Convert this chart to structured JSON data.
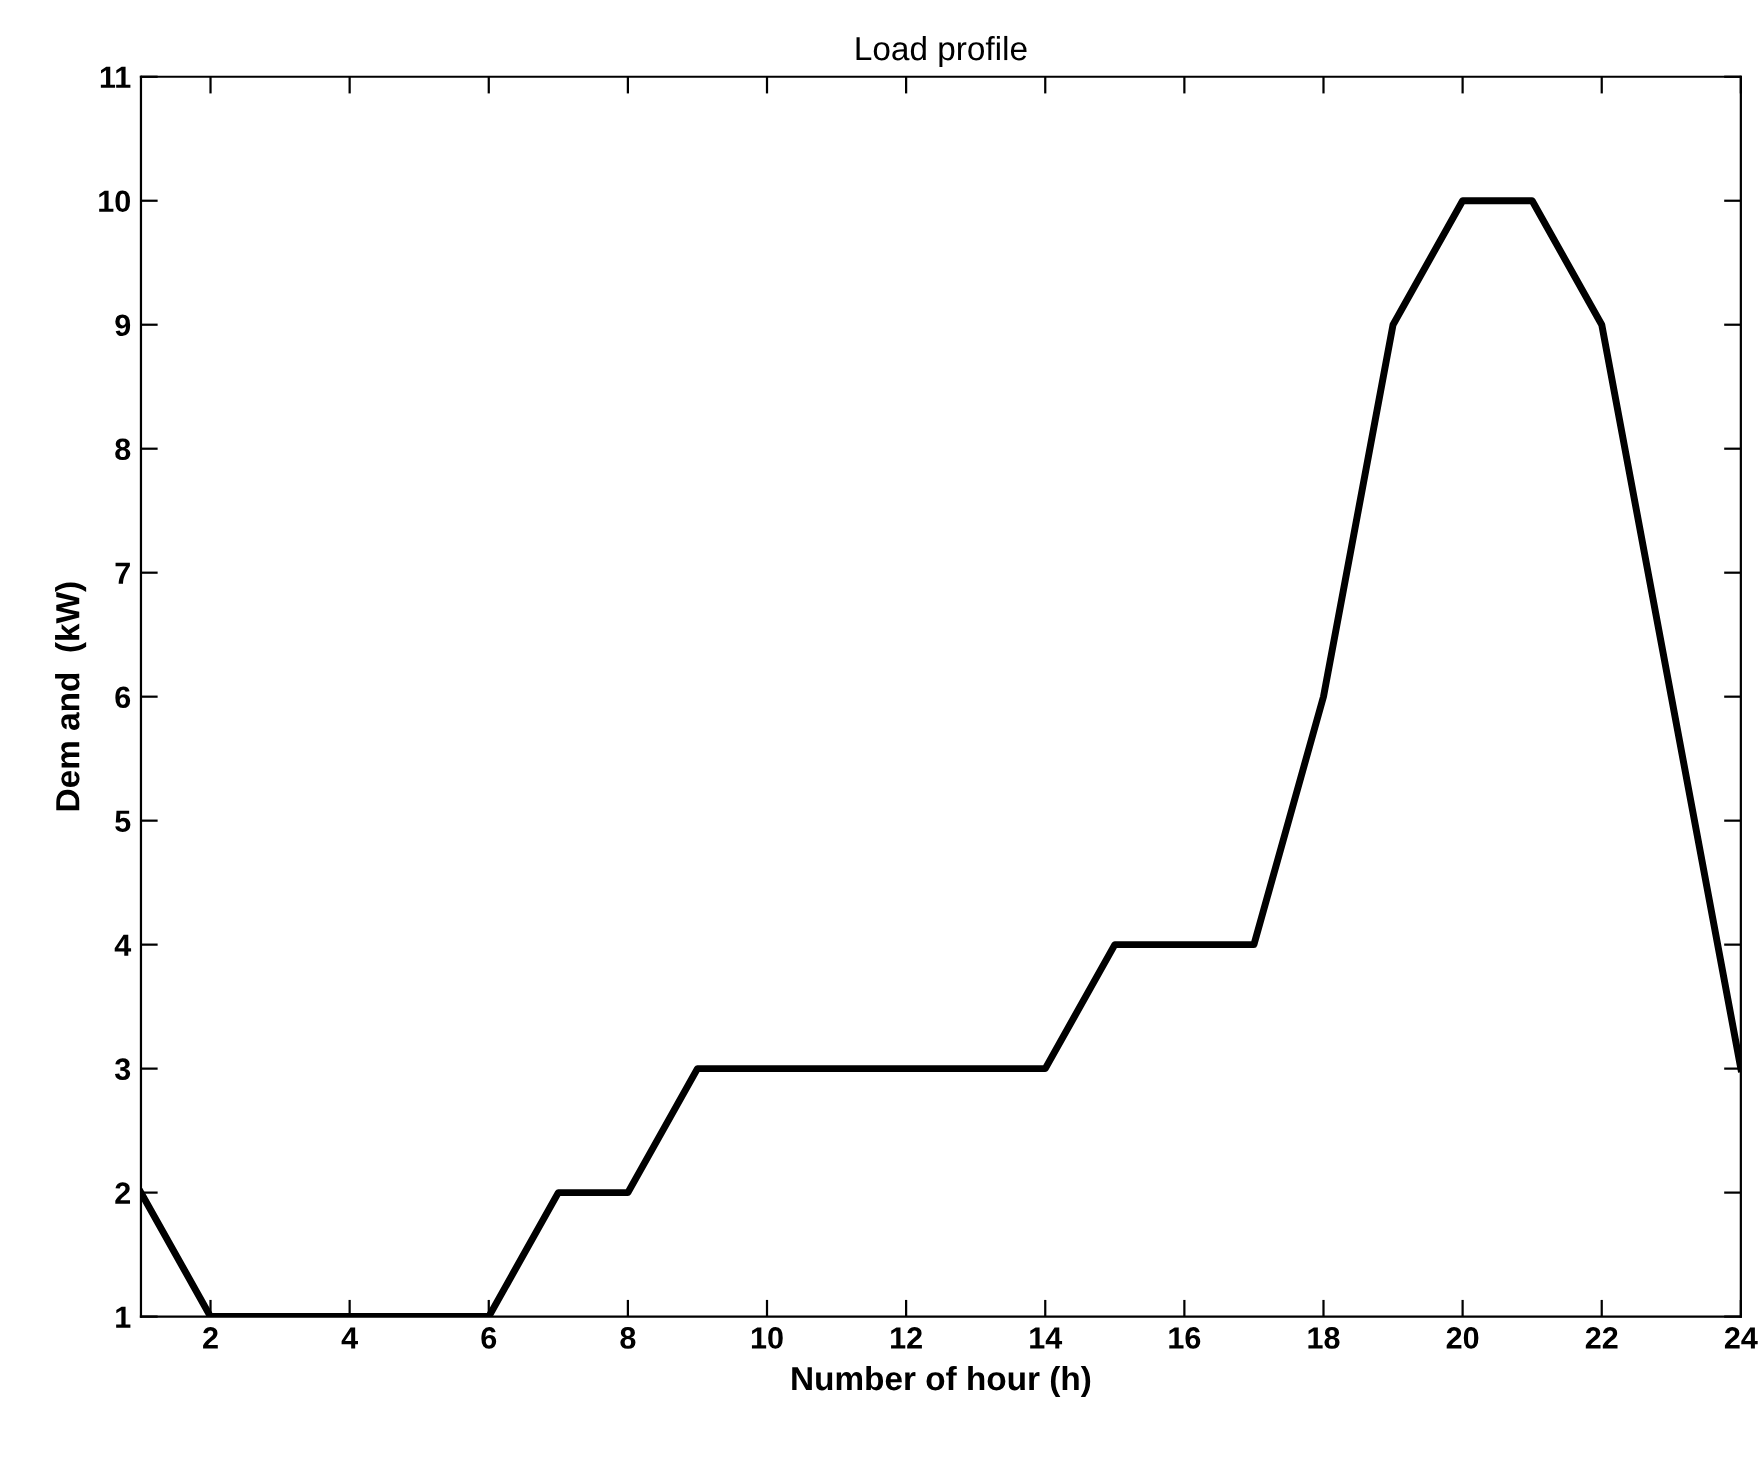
{
  "chart_data": {
    "type": "line",
    "title": "Load profile",
    "xlabel": "Number of hour (h)",
    "ylabel": "Dem and  (kW)",
    "x": [
      1,
      2,
      3,
      4,
      5,
      6,
      7,
      8,
      9,
      10,
      11,
      12,
      13,
      14,
      15,
      16,
      17,
      18,
      19,
      20,
      21,
      22,
      23,
      24
    ],
    "series": [
      {
        "color": "#000000",
        "values": [
          2,
          1,
          1,
          1,
          1,
          1,
          2,
          2,
          3,
          3,
          3,
          3,
          3,
          3,
          4,
          4,
          4,
          6,
          9,
          10,
          10,
          9,
          6,
          3
        ]
      }
    ],
    "xlim": [
      1,
      24
    ],
    "xticks": [
      2,
      4,
      6,
      8,
      10,
      12,
      14,
      16,
      18,
      20,
      22,
      24
    ],
    "ylim": [
      1,
      11
    ],
    "yticks": [
      1,
      2,
      3,
      4,
      5,
      6,
      7,
      8,
      9,
      10,
      11
    ],
    "grid": false,
    "legend": false,
    "marker": "none",
    "line_style": "solid"
  }
}
